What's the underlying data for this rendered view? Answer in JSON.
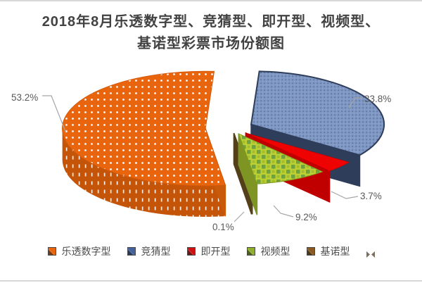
{
  "page": {
    "background": "#ffffff",
    "frame_line_color": "#d8d8d8"
  },
  "chart_data": {
    "type": "pie",
    "projection": "3d-exploded",
    "title": "2018年8月乐透数字型、竞猜型、即开型、视频型、基诺型彩票市场份额图",
    "title_lines": [
      "2018年8月乐透数字型、竞猜型、即开型、视频型、",
      "基诺型彩票市场份额图"
    ],
    "categories": [
      "乐透数字型",
      "竞猜型",
      "即开型",
      "视频型",
      "基诺型"
    ],
    "values": [
      53.2,
      33.8,
      3.7,
      9.2,
      0.1
    ],
    "unit": "%",
    "data_labels": [
      "53.2%",
      "33.8%",
      "3.7%",
      "9.2%",
      "0.1%"
    ],
    "start_angle_deg": 172,
    "legend_position": "bottom",
    "legend_trailing_marker": true,
    "colors": {
      "slice_top": [
        "#e8650d",
        "#7e97c3",
        "#ee0202",
        "#bccf33",
        "#5e461c"
      ],
      "slice_side": [
        "#c45408",
        "#5a70a0",
        "#9b1208",
        "#97a828",
        "#3a2b0e"
      ],
      "legend_markers": [
        "#e8650d",
        "#44619c",
        "#cf1211",
        "#8fae2a",
        "#8a5a20"
      ],
      "label_text": "#595959",
      "leader_line": "#a6a6a6",
      "title_text": "#424242"
    },
    "pattern_styles": [
      "white-dots",
      "woven-dots",
      "solid",
      "green-checker",
      "solid"
    ]
  }
}
